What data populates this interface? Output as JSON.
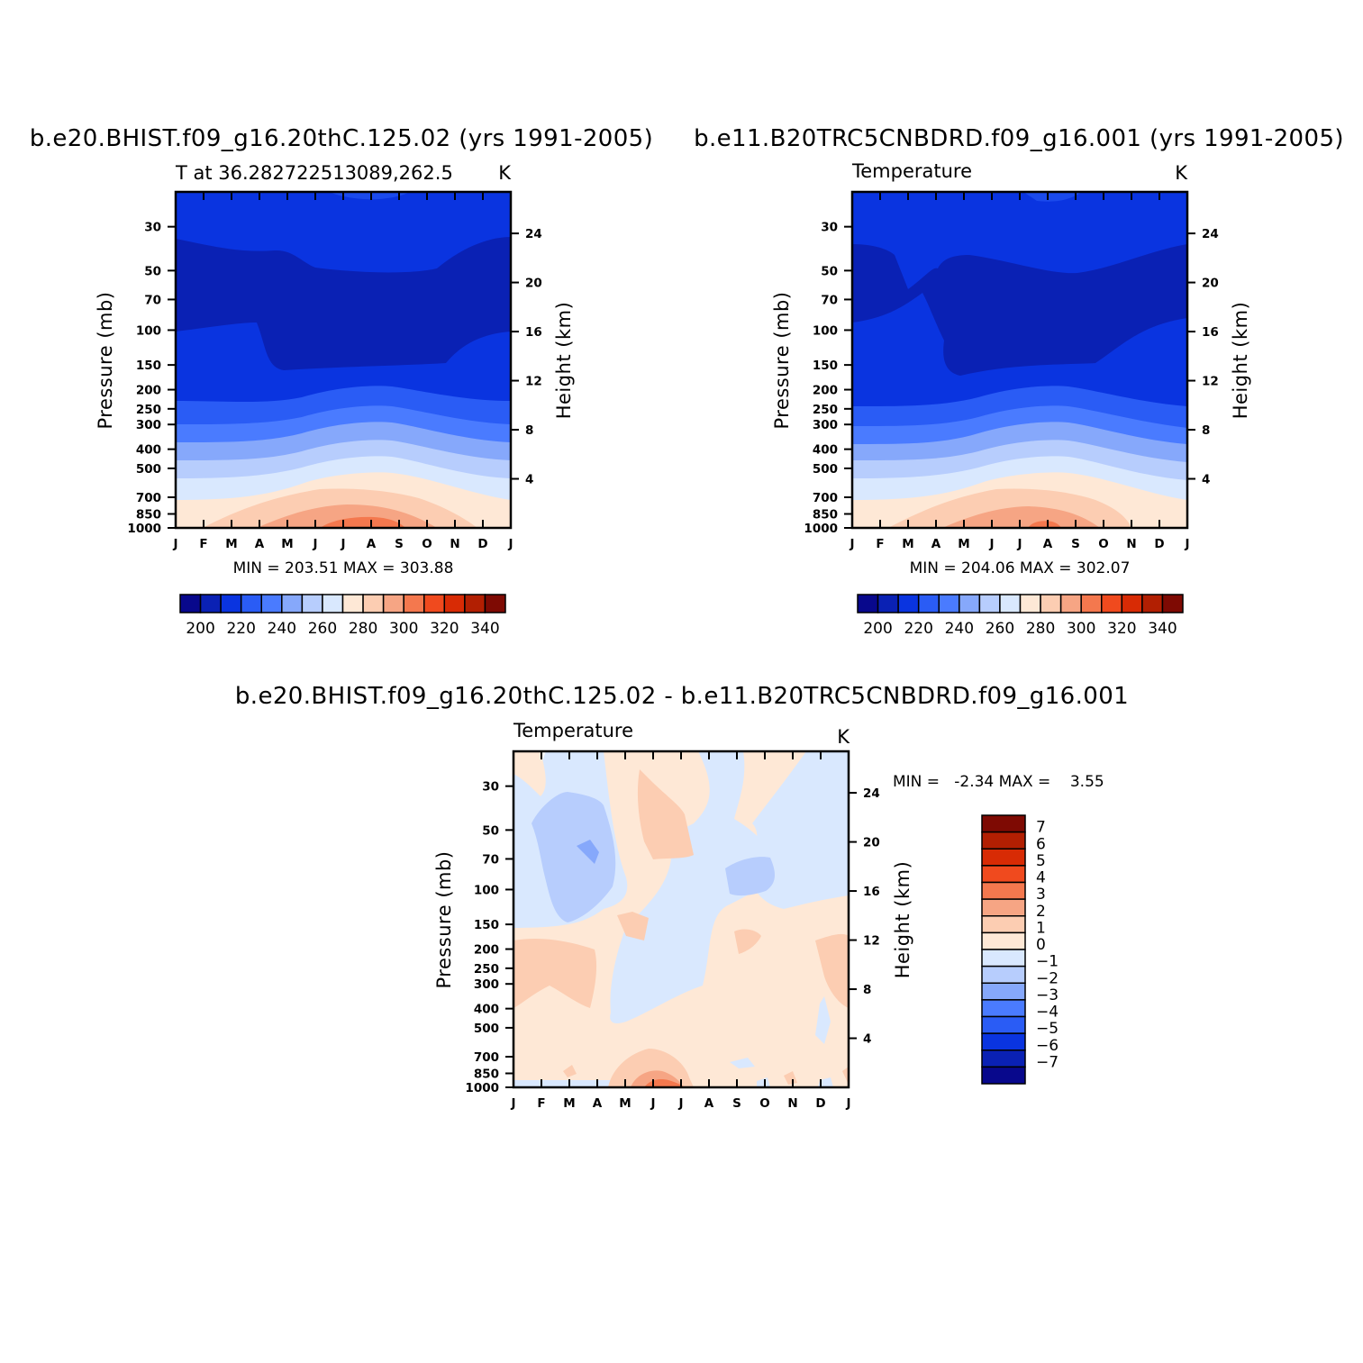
{
  "panels": [
    {
      "title": "b.e20.BHIST.f09_g16.20thC.125.02 (yrs 1991-2005)",
      "subtitle_left": "T at 36.282722513089,262.5",
      "subtitle_right": "K",
      "y_label": "Pressure (mb)",
      "y2_label": "Height (km)",
      "min_max": "MIN = 203.51 MAX = 303.88"
    },
    {
      "title": "b.e11.B20TRC5CNBDRD.f09_g16.001 (yrs 1991-2005)",
      "subtitle_left": "Temperature",
      "subtitle_right": "K",
      "y_label": "Pressure (mb)",
      "y2_label": "Height (km)",
      "min_max": "MIN = 204.06 MAX = 302.07"
    },
    {
      "title": "b.e20.BHIST.f09_g16.20thC.125.02 - b.e11.B20TRC5CNBDRD.f09_g16.001",
      "subtitle_left": "Temperature",
      "subtitle_right": "K",
      "y_label": "Pressure (mb)",
      "y2_label": "Height (km)",
      "min_max": "MIN =   -2.34 MAX =    3.55"
    }
  ],
  "chart_data": [
    {
      "type": "heatmap",
      "title": "b.e20.BHIST.f09_g16.20thC.125.02 (yrs 1991-2005)",
      "subtitle": "T at 36.282722513089,262.5",
      "units": "K",
      "xlabel": "",
      "ylabel": "Pressure (mb)",
      "y2label": "Height (km)",
      "x_ticks": [
        "J",
        "F",
        "M",
        "A",
        "M",
        "J",
        "J",
        "A",
        "S",
        "O",
        "N",
        "D",
        "J"
      ],
      "y_ticks": [
        30,
        50,
        70,
        100,
        150,
        200,
        250,
        300,
        400,
        500,
        700,
        850,
        1000
      ],
      "y2_ticks": [
        24,
        20,
        16,
        12,
        8,
        4
      ],
      "ylim": [
        1000,
        20
      ],
      "min": 203.51,
      "max": 303.88,
      "levels": [
        195,
        200,
        205,
        210,
        215,
        220,
        225,
        230,
        240,
        250,
        260,
        270,
        280,
        290,
        300
      ],
      "colorbar_labels": [
        200,
        220,
        240,
        260,
        280,
        300,
        320,
        340
      ],
      "colorbar_colors": [
        "#08088c",
        "#0a21b4",
        "#0a34e0",
        "#2a5cf5",
        "#4a7bff",
        "#86a8fb",
        "#b7cdfd",
        "#d9e8fe",
        "#fee8d6",
        "#fccdb2",
        "#f6a584",
        "#f4784e",
        "#f04a1e",
        "#d82b05",
        "#b21f02",
        "#7e0a03"
      ],
      "series_profile": "summer-warm, winter-cold troposphere; cold tropopause near 70-150 mb"
    },
    {
      "type": "heatmap",
      "title": "b.e11.B20TRC5CNBDRD.f09_g16.001 (yrs 1991-2005)",
      "subtitle": "Temperature",
      "units": "K",
      "ylabel": "Pressure (mb)",
      "y2label": "Height (km)",
      "x_ticks": [
        "J",
        "F",
        "M",
        "A",
        "M",
        "J",
        "J",
        "A",
        "S",
        "O",
        "N",
        "D",
        "J"
      ],
      "y_ticks": [
        30,
        50,
        70,
        100,
        150,
        200,
        250,
        300,
        400,
        500,
        700,
        850,
        1000
      ],
      "y2_ticks": [
        24,
        20,
        16,
        12,
        8,
        4
      ],
      "ylim": [
        1000,
        20
      ],
      "min": 204.06,
      "max": 302.07,
      "levels": [
        195,
        200,
        205,
        210,
        215,
        220,
        225,
        230,
        240,
        250,
        260,
        270,
        280,
        290,
        300
      ],
      "colorbar_labels": [
        200,
        220,
        240,
        260,
        280,
        300,
        320,
        340
      ],
      "colorbar_colors": [
        "#08088c",
        "#0a21b4",
        "#0a34e0",
        "#2a5cf5",
        "#4a7bff",
        "#86a8fb",
        "#b7cdfd",
        "#d9e8fe",
        "#fee8d6",
        "#fccdb2",
        "#f6a584",
        "#f4784e",
        "#f04a1e",
        "#d82b05",
        "#b21f02",
        "#7e0a03"
      ]
    },
    {
      "type": "heatmap",
      "title": "b.e20.BHIST.f09_g16.20thC.125.02 - b.e11.B20TRC5CNBDRD.f09_g16.001",
      "subtitle": "Temperature",
      "units": "K",
      "ylabel": "Pressure (mb)",
      "y2label": "Height (km)",
      "x_ticks": [
        "J",
        "F",
        "M",
        "A",
        "M",
        "J",
        "J",
        "A",
        "S",
        "O",
        "N",
        "D",
        "J"
      ],
      "y_ticks": [
        30,
        50,
        70,
        100,
        150,
        200,
        250,
        300,
        400,
        500,
        700,
        850,
        1000
      ],
      "y2_ticks": [
        24,
        20,
        16,
        12,
        8,
        4
      ],
      "ylim": [
        1000,
        20
      ],
      "min": -2.34,
      "max": 3.55,
      "colorbar_labels": [
        7,
        6,
        5,
        4,
        3,
        2,
        1,
        0,
        -1,
        -2,
        -3,
        -4,
        -5,
        -6,
        -7
      ],
      "colorbar_colors": [
        "#7e0a03",
        "#b21f02",
        "#d82b05",
        "#f04a1e",
        "#f4784e",
        "#f6a584",
        "#fccdb2",
        "#fee8d6",
        "#d9e8fe",
        "#b7cdfd",
        "#86a8fb",
        "#4a7bff",
        "#2a5cf5",
        "#0a34e0",
        "#0a21b4",
        "#08088c"
      ]
    }
  ]
}
